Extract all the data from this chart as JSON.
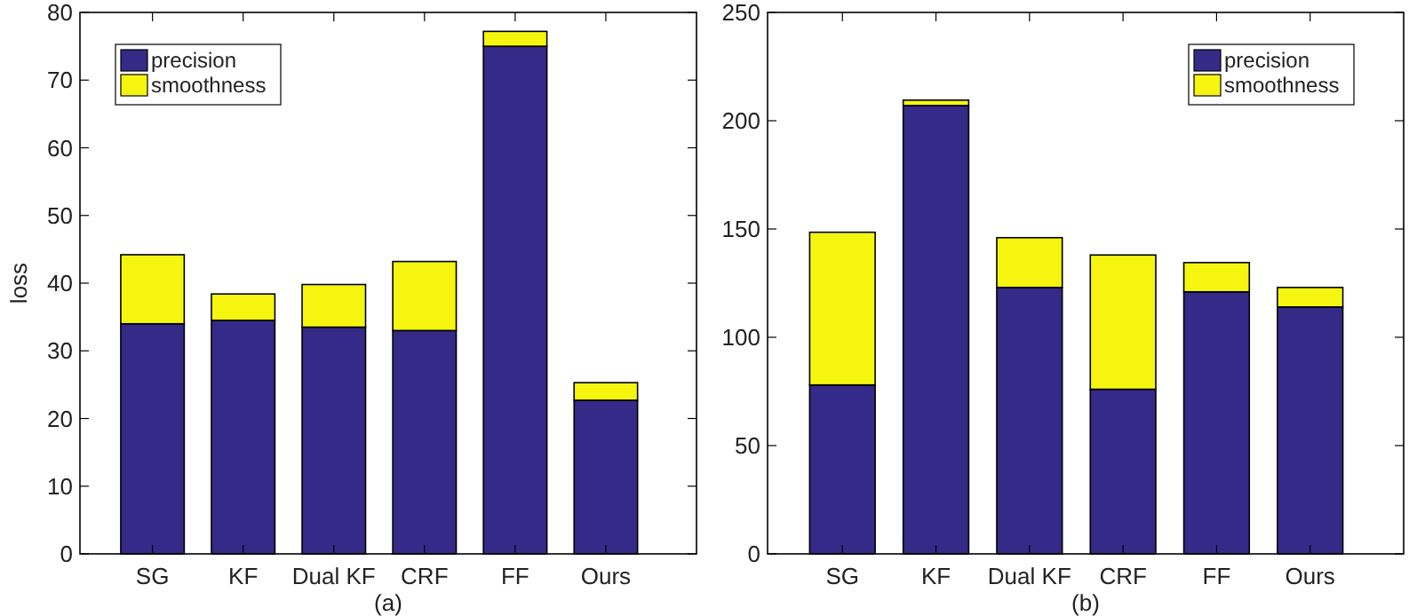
{
  "chart_data": [
    {
      "type": "bar",
      "stacked": true,
      "xlabel": "(a)",
      "ylabel": "loss",
      "categories": [
        "SG",
        "KF",
        "Dual KF",
        "CRF",
        "FF",
        "Ours"
      ],
      "series": [
        {
          "name": "precision",
          "color": "#352a87",
          "values": [
            34,
            34.5,
            33.5,
            33,
            75,
            22.7
          ]
        },
        {
          "name": "smoothness",
          "color": "#f5f50f",
          "values": [
            10.2,
            3.9,
            6.3,
            10.2,
            2.2,
            2.6
          ]
        }
      ],
      "ylim": [
        0,
        80
      ],
      "yticks": [
        0,
        10,
        20,
        30,
        40,
        50,
        60,
        70,
        80
      ],
      "grid": false,
      "legend": "top left"
    },
    {
      "type": "bar",
      "stacked": true,
      "xlabel": "(b)",
      "categories": [
        "SG",
        "KF",
        "Dual KF",
        "CRF",
        "FF",
        "Ours"
      ],
      "series": [
        {
          "name": "precision",
          "color": "#352a87",
          "values": [
            78,
            207,
            123,
            76,
            121,
            114
          ]
        },
        {
          "name": "smoothness",
          "color": "#f5f50f",
          "values": [
            70.5,
            2.5,
            23,
            62,
            13.5,
            9
          ]
        }
      ],
      "ylim": [
        0,
        250
      ],
      "yticks": [
        0,
        50,
        100,
        150,
        200,
        250
      ],
      "grid": false,
      "legend": "top right"
    }
  ]
}
